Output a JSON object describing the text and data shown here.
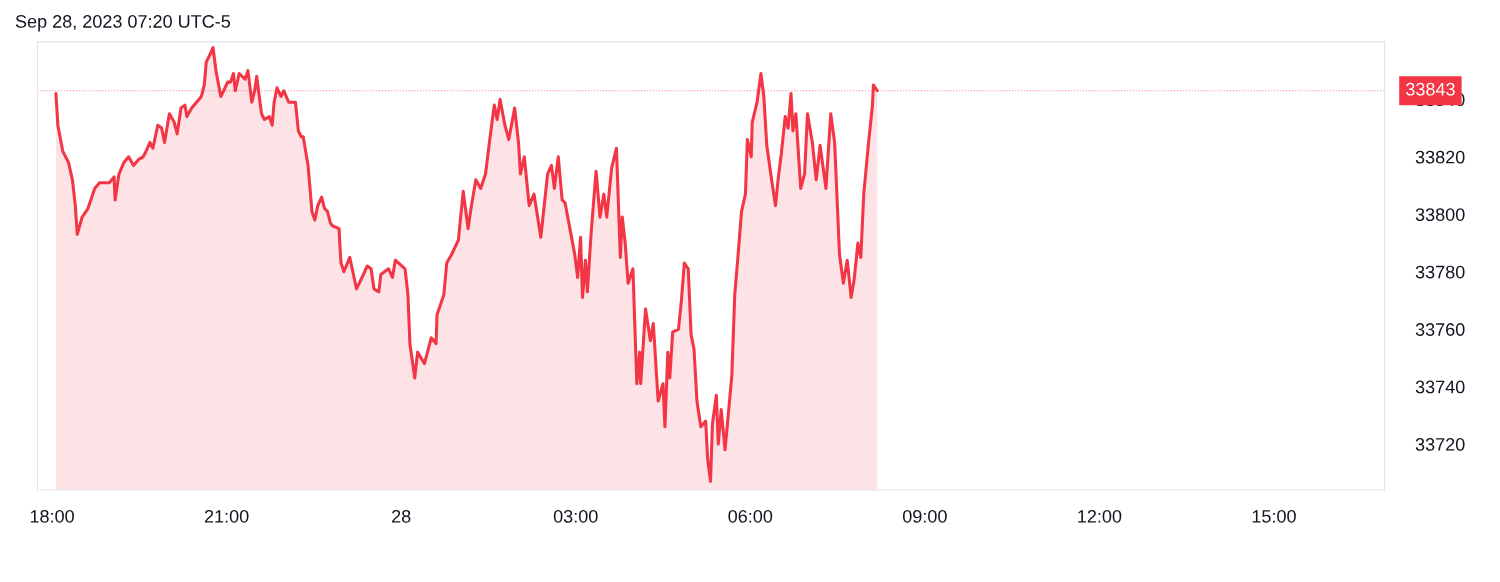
{
  "chart_data": {
    "type": "area",
    "title": "Sep 28, 2023 07:20 UTC-5",
    "xlim": [
      "2023-09-27T17:45",
      "2023-09-28T16:54"
    ],
    "ylim": [
      33704,
      33860
    ],
    "xticks": [
      {
        "value": "2023-09-27T18:00",
        "label": "18:00"
      },
      {
        "value": "2023-09-27T21:00",
        "label": "21:00"
      },
      {
        "value": "2023-09-28",
        "label": "28"
      },
      {
        "value": "2023-09-28T03:00",
        "label": "03:00"
      },
      {
        "value": "2023-09-28T06:00",
        "label": "06:00"
      },
      {
        "value": "2023-09-28T09:00",
        "label": "09:00"
      },
      {
        "value": "2023-09-28T12:00",
        "label": "12:00"
      },
      {
        "value": "2023-09-28T15:00",
        "label": "15:00"
      }
    ],
    "yticks": [
      33720,
      33740,
      33760,
      33780,
      33800,
      33820,
      33840
    ],
    "grid": false,
    "legend": false,
    "ref_lines": [
      {
        "axis": "y",
        "value": 33843,
        "label": "33843",
        "color": "#f23645"
      }
    ],
    "series": [
      {
        "color": "#f23645",
        "x": [
          "2023-09-27T18:04",
          "2023-09-27T18:06",
          "2023-09-27T18:11",
          "2023-09-27T18:17",
          "2023-09-27T18:21",
          "2023-09-27T18:24",
          "2023-09-27T18:26",
          "2023-09-27T18:31",
          "2023-09-27T18:37",
          "2023-09-27T18:44",
          "2023-09-27T18:49",
          "2023-09-27T18:54",
          "2023-09-27T18:59",
          "2023-09-27T19:04",
          "2023-09-27T19:05",
          "2023-09-27T19:09",
          "2023-09-27T19:14",
          "2023-09-27T19:19",
          "2023-09-27T19:24",
          "2023-09-27T19:29",
          "2023-09-27T19:34",
          "2023-09-27T19:37",
          "2023-09-27T19:41",
          "2023-09-27T19:44",
          "2023-09-27T19:49",
          "2023-09-27T19:53",
          "2023-09-27T19:56",
          "2023-09-27T20:01",
          "2023-09-27T20:06",
          "2023-09-27T20:09",
          "2023-09-27T20:13",
          "2023-09-27T20:17",
          "2023-09-27T20:19",
          "2023-09-27T20:24",
          "2023-09-27T20:29",
          "2023-09-27T20:34",
          "2023-09-27T20:37",
          "2023-09-27T20:39",
          "2023-09-27T20:42",
          "2023-09-27T20:46",
          "2023-09-27T20:49",
          "2023-09-27T20:54",
          "2023-09-27T20:57",
          "2023-09-27T21:01",
          "2023-09-27T21:04",
          "2023-09-27T21:07",
          "2023-09-27T21:09",
          "2023-09-27T21:13",
          "2023-09-27T21:19",
          "2023-09-27T21:22",
          "2023-09-27T21:26",
          "2023-09-27T21:29",
          "2023-09-27T21:31",
          "2023-09-27T21:36",
          "2023-09-27T21:39",
          "2023-09-27T21:44",
          "2023-09-27T21:47",
          "2023-09-27T21:49",
          "2023-09-27T21:52",
          "2023-09-27T21:56",
          "2023-09-27T21:59",
          "2023-09-27T22:04",
          "2023-09-27T22:09",
          "2023-09-27T22:11",
          "2023-09-27T22:14",
          "2023-09-27T22:17",
          "2023-09-27T22:19",
          "2023-09-27T22:24",
          "2023-09-27T22:28",
          "2023-09-27T22:31",
          "2023-09-27T22:34",
          "2023-09-27T22:38",
          "2023-09-27T22:41",
          "2023-09-27T22:44",
          "2023-09-27T22:47",
          "2023-09-27T22:49",
          "2023-09-27T22:56",
          "2023-09-27T22:57",
          "2023-09-27T22:58",
          "2023-09-27T23:01",
          "2023-09-27T23:07",
          "2023-09-27T23:14",
          "2023-09-27T23:21",
          "2023-09-27T23:25",
          "2023-09-27T23:29",
          "2023-09-27T23:32",
          "2023-09-27T23:37",
          "2023-09-27T23:39",
          "2023-09-27T23:47",
          "2023-09-27T23:51",
          "2023-09-27T23:54",
          "2023-09-28T00:04",
          "2023-09-28T00:07",
          "2023-09-28T00:09",
          "2023-09-28T00:14",
          "2023-09-28T00:17",
          "2023-09-28T00:24",
          "2023-09-28T00:31",
          "2023-09-28T00:36",
          "2023-09-28T00:37",
          "2023-09-28T00:44",
          "2023-09-28T00:47",
          "2023-09-28T00:52",
          "2023-09-28T00:59",
          "2023-09-28T01:04",
          "2023-09-28T01:09",
          "2023-09-28T01:12",
          "2023-09-28T01:17",
          "2023-09-28T01:22",
          "2023-09-28T01:27",
          "2023-09-28T01:31",
          "2023-09-28T01:36",
          "2023-09-28T01:39",
          "2023-09-28T01:42",
          "2023-09-28T01:47",
          "2023-09-28T01:51",
          "2023-09-28T01:57",
          "2023-09-28T02:01",
          "2023-09-28T02:03",
          "2023-09-28T02:07",
          "2023-09-28T02:12",
          "2023-09-28T02:17",
          "2023-09-28T02:24",
          "2023-09-28T02:31",
          "2023-09-28T02:35",
          "2023-09-28T02:38",
          "2023-09-28T02:42",
          "2023-09-28T02:46",
          "2023-09-28T02:49",
          "2023-09-28T02:54",
          "2023-09-28T02:59",
          "2023-09-28T03:02",
          "2023-09-28T03:05",
          "2023-09-28T03:07",
          "2023-09-28T03:10",
          "2023-09-28T03:12",
          "2023-09-28T03:16",
          "2023-09-28T03:21",
          "2023-09-28T03:25",
          "2023-09-28T03:29",
          "2023-09-28T03:32",
          "2023-09-28T03:37",
          "2023-09-28T03:42",
          "2023-09-28T03:46",
          "2023-09-28T03:48",
          "2023-09-28T03:51",
          "2023-09-28T03:54",
          "2023-09-28T03:59",
          "2023-09-28T04:03",
          "2023-09-28T04:06",
          "2023-09-28T04:07",
          "2023-09-28T04:12",
          "2023-09-28T04:17",
          "2023-09-28T04:20",
          "2023-09-28T04:25",
          "2023-09-28T04:30",
          "2023-09-28T04:32",
          "2023-09-28T04:35",
          "2023-09-28T04:37",
          "2023-09-28T04:40",
          "2023-09-28T04:46",
          "2023-09-28T04:49",
          "2023-09-28T04:52",
          "2023-09-28T04:56",
          "2023-09-28T04:59",
          "2023-09-28T05:02",
          "2023-09-28T05:05",
          "2023-09-28T05:09",
          "2023-09-28T05:14",
          "2023-09-28T05:16",
          "2023-09-28T05:19",
          "2023-09-28T05:21",
          "2023-09-28T05:25",
          "2023-09-28T05:27",
          "2023-09-28T05:30",
          "2023-09-28T05:34",
          "2023-09-28T05:37",
          "2023-09-28T05:41",
          "2023-09-28T05:44",
          "2023-09-28T05:47",
          "2023-09-28T05:51",
          "2023-09-28T05:55",
          "2023-09-28T05:57",
          "2023-09-28T06:01",
          "2023-09-28T06:02",
          "2023-09-28T06:07",
          "2023-09-28T06:11",
          "2023-09-28T06:14",
          "2023-09-28T06:17",
          "2023-09-28T06:22",
          "2023-09-28T06:26",
          "2023-09-28T06:29",
          "2023-09-28T06:32",
          "2023-09-28T06:36",
          "2023-09-28T06:39",
          "2023-09-28T06:42",
          "2023-09-28T06:44",
          "2023-09-28T06:47",
          "2023-09-28T06:52",
          "2023-09-28T06:56",
          "2023-09-28T06:59",
          "2023-09-28T07:04",
          "2023-09-28T07:08",
          "2023-09-28T07:12",
          "2023-09-28T07:16",
          "2023-09-28T07:18",
          "2023-09-28T07:23",
          "2023-09-28T07:27",
          "2023-09-28T07:32",
          "2023-09-28T07:36",
          "2023-09-28T07:40",
          "2023-09-28T07:44",
          "2023-09-28T07:47",
          "2023-09-28T07:51",
          "2023-09-28T07:54",
          "2023-09-28T07:57",
          "2023-09-28T08:02",
          "2023-09-28T08:06",
          "2023-09-28T08:07",
          "2023-09-28T08:11"
        ],
        "values": [
          33842,
          33831,
          33822,
          33818,
          33812,
          33803,
          33793,
          33799,
          33802,
          33809,
          33811,
          33811,
          33811,
          33813,
          33805,
          33814,
          33818,
          33820,
          33817,
          33819,
          33820,
          33822,
          33825,
          33823,
          33831,
          33830,
          33825,
          33835,
          33832,
          33828,
          33837,
          33838,
          33834,
          33837,
          33839,
          33841,
          33845,
          33853,
          33855,
          33858,
          33850,
          33841,
          33843,
          33846,
          33846,
          33849,
          33843,
          33849,
          33847,
          33850,
          33839,
          33843,
          33848,
          33835,
          33833,
          33834,
          33831,
          33839,
          33844,
          33841,
          33843,
          33839,
          33839,
          33839,
          33829,
          33827,
          33827,
          33817,
          33801,
          33798,
          33803,
          33806,
          33802,
          33801,
          33797,
          33796,
          33795,
          33788,
          33783,
          33780,
          33785,
          33774,
          33779,
          33782,
          33781,
          33774,
          33773,
          33779,
          33781,
          33778,
          33784,
          33781,
          33772,
          33755,
          33743,
          33752,
          33748,
          33757,
          33755,
          33765,
          33772,
          33783,
          33786,
          33791,
          33808,
          33795,
          33802,
          33812,
          33809,
          33814,
          33825,
          33838,
          33833,
          33840,
          33831,
          33826,
          33837,
          33825,
          33814,
          33820,
          33803,
          33807,
          33792,
          33814,
          33817,
          33809,
          33820,
          33805,
          33804,
          33795,
          33786,
          33778,
          33792,
          33771,
          33784,
          33773,
          33794,
          33815,
          33799,
          33807,
          33799,
          33816,
          33823,
          33785,
          33799,
          33790,
          33776,
          33781,
          33741,
          33752,
          33741,
          33767,
          33756,
          33762,
          33735,
          33741,
          33726,
          33752,
          33743,
          33759,
          33760,
          33770,
          33783,
          33781,
          33758,
          33753,
          33735,
          33726,
          33728,
          33715,
          33707,
          33727,
          33737,
          33720,
          33732,
          33718,
          33729,
          33744,
          33772,
          33784,
          33801,
          33807,
          33826,
          33820,
          33832,
          33839,
          33849,
          33841,
          33824,
          33812,
          33803,
          33813,
          33821,
          33834,
          33830,
          33842,
          33829,
          33835,
          33809,
          33814,
          33835,
          33825,
          33812,
          33824,
          33814,
          33809,
          33835,
          33825,
          33786,
          33776,
          33784,
          33771,
          33777,
          33790,
          33785,
          33807,
          33825,
          33838,
          33845,
          33843
        ]
      }
    ]
  }
}
